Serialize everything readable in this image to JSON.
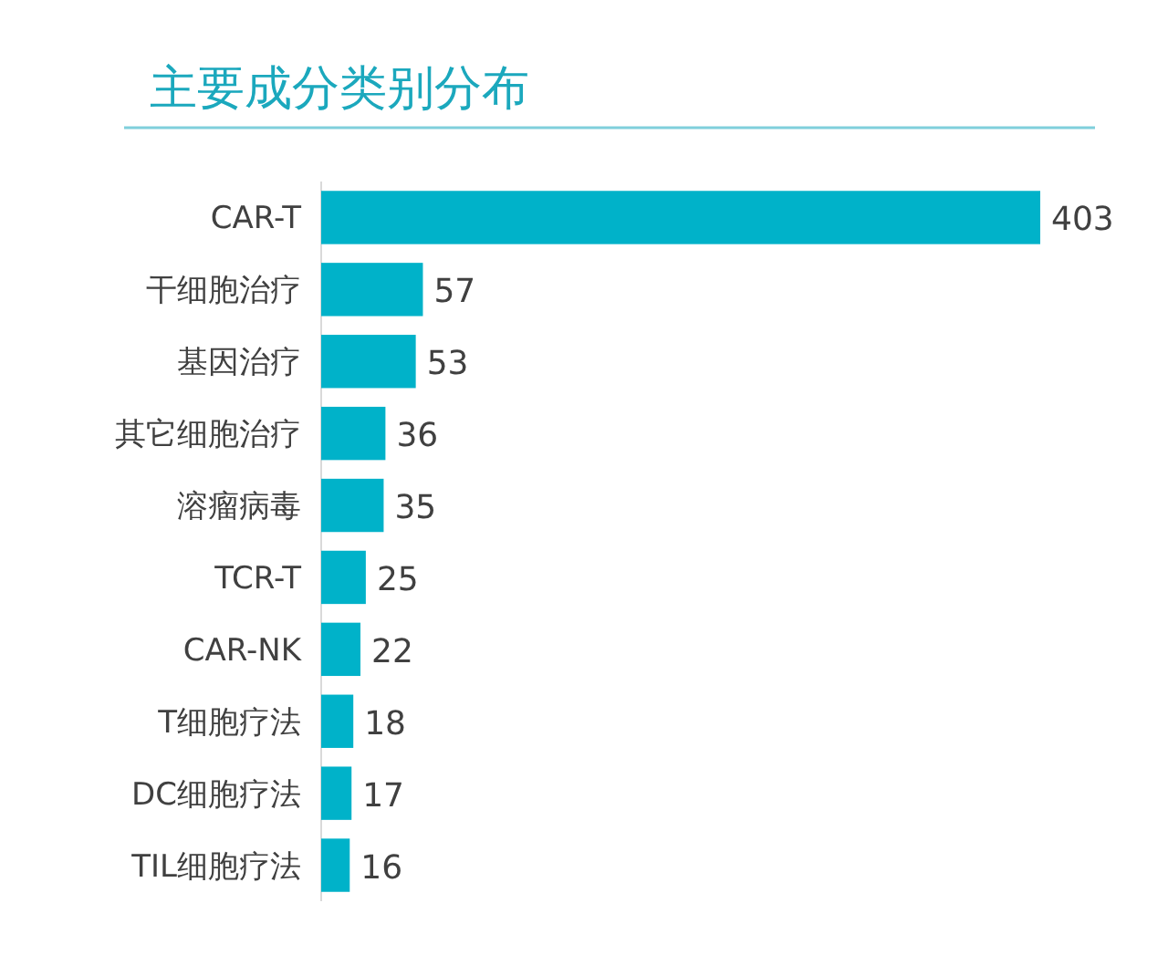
{
  "chart_data": {
    "type": "bar",
    "orientation": "horizontal",
    "title": "主要成分类别分布",
    "categories": [
      "CAR-T",
      "干细胞治疗",
      "基因治疗",
      "其它细胞治疗",
      "溶瘤病毒",
      "TCR-T",
      "CAR-NK",
      "T细胞疗法",
      "DC细胞疗法",
      "TIL细胞疗法"
    ],
    "values": [
      403,
      57,
      53,
      36,
      35,
      25,
      22,
      18,
      17,
      16
    ],
    "color": "#00b2c9",
    "data_labels": true
  }
}
